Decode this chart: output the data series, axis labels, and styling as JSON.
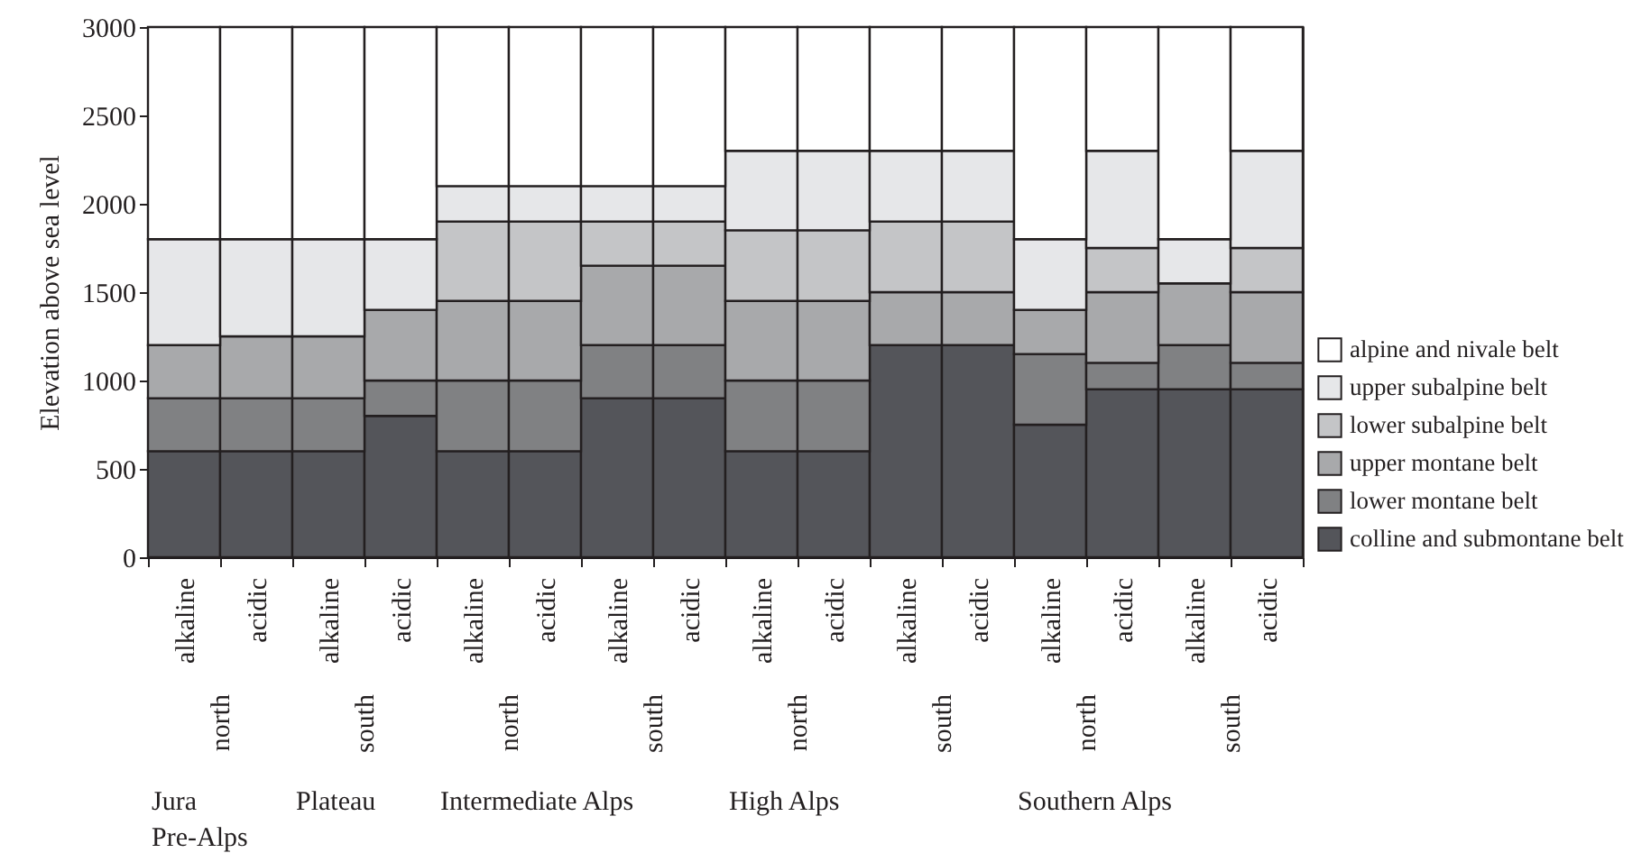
{
  "chart_data": {
    "type": "bar",
    "stacked": true,
    "ylabel": "Elevation above sea level",
    "categories": [
      "alkaline",
      "acidic",
      "alkaline",
      "acidic",
      "alkaline",
      "acidic",
      "alkaline",
      "acidic",
      "alkaline",
      "acidic",
      "alkaline",
      "acidic",
      "alkaline",
      "acidic",
      "alkaline",
      "acidic"
    ],
    "series": [
      {
        "name": "colline and submontane belt",
        "color": "#54555a",
        "values": [
          600,
          600,
          600,
          800,
          600,
          600,
          900,
          900,
          600,
          600,
          1200,
          1200,
          750,
          950,
          950,
          950
        ]
      },
      {
        "name": "lower montane belt",
        "color": "#808183",
        "values": [
          300,
          300,
          300,
          200,
          400,
          400,
          300,
          300,
          400,
          400,
          null,
          null,
          400,
          150,
          250,
          150
        ]
      },
      {
        "name": "upper montane belt",
        "color": "#a8a9ab",
        "values": [
          300,
          350,
          350,
          400,
          450,
          450,
          450,
          450,
          450,
          450,
          300,
          300,
          250,
          400,
          350,
          400
        ]
      },
      {
        "name": "lower subalpine belt",
        "color": "#c4c5c7",
        "values": [
          null,
          null,
          null,
          null,
          450,
          450,
          250,
          250,
          400,
          400,
          400,
          400,
          null,
          250,
          null,
          250
        ]
      },
      {
        "name": "upper subalpine belt",
        "color": "#e6e7e9",
        "values": [
          600,
          550,
          550,
          400,
          200,
          200,
          200,
          200,
          450,
          450,
          400,
          400,
          400,
          550,
          250,
          550
        ]
      },
      {
        "name": "alpine and nivale belt",
        "color": "#ffffff",
        "values": [
          1200,
          1200,
          1200,
          1200,
          900,
          900,
          900,
          900,
          700,
          700,
          700,
          700,
          1200,
          700,
          1200,
          700
        ]
      }
    ],
    "ylim": [
      0,
      3000
    ],
    "yticks": [
      0,
      500,
      1000,
      1500,
      2000,
      2500,
      3000
    ],
    "legend": "right",
    "annotations": [
      "north",
      "south",
      "north",
      "south",
      "north",
      "south",
      "north",
      "south",
      "Jura",
      "Plateau",
      "Pre-Alps",
      "Intermediate Alps",
      "High Alps",
      "Southern Alps"
    ]
  }
}
